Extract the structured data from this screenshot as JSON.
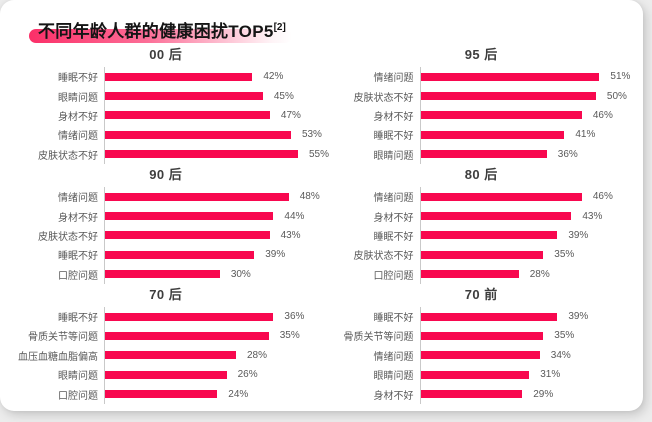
{
  "page": {
    "title": "不同年龄人群的健康困扰TOP5",
    "title_superscript": "[2]",
    "accent_color": "#f8084f",
    "title_underline_from": "#fb2f68",
    "title_underline_mid": "#fc6e97",
    "title_underline_to": "#fef3f6",
    "label_color": "#595959",
    "axis_color": "#c9c9c9"
  },
  "chart_data": [
    {
      "type": "bar",
      "orientation": "horizontal",
      "title": "00 后",
      "unit": "%",
      "categories": [
        "睡眠不好",
        "眼睛问题",
        "身材不好",
        "情绪问题",
        "皮肤状态不好"
      ],
      "values": [
        42,
        45,
        47,
        53,
        55
      ],
      "xlim": [
        0,
        60
      ],
      "grid": false,
      "legend": false
    },
    {
      "type": "bar",
      "orientation": "horizontal",
      "title": "95 后",
      "unit": "%",
      "categories": [
        "情绪问题",
        "皮肤状态不好",
        "身材不好",
        "睡眠不好",
        "眼睛问题"
      ],
      "values": [
        51,
        50,
        46,
        41,
        36
      ],
      "xlim": [
        0,
        60
      ],
      "grid": false,
      "legend": false
    },
    {
      "type": "bar",
      "orientation": "horizontal",
      "title": "90 后",
      "unit": "%",
      "categories": [
        "情绪问题",
        "身材不好",
        "皮肤状态不好",
        "睡眠不好",
        "口腔问题"
      ],
      "values": [
        48,
        44,
        43,
        39,
        30
      ],
      "xlim": [
        0,
        55
      ],
      "grid": false,
      "legend": false
    },
    {
      "type": "bar",
      "orientation": "horizontal",
      "title": "80 后",
      "unit": "%",
      "categories": [
        "情绪问题",
        "身材不好",
        "睡眠不好",
        "皮肤状态不好",
        "口腔问题"
      ],
      "values": [
        46,
        43,
        39,
        35,
        28
      ],
      "xlim": [
        0,
        60
      ],
      "grid": false,
      "legend": false
    },
    {
      "type": "bar",
      "orientation": "horizontal",
      "title": "70 后",
      "unit": "%",
      "categories": [
        "睡眠不好",
        "骨质关节等问题",
        "血压血糖血脂偏高",
        "眼睛问题",
        "口腔问题"
      ],
      "values": [
        36,
        35,
        28,
        26,
        24
      ],
      "xlim": [
        0,
        45
      ],
      "grid": false,
      "legend": false
    },
    {
      "type": "bar",
      "orientation": "horizontal",
      "title": "70 前",
      "unit": "%",
      "categories": [
        "睡眠不好",
        "骨质关节等问题",
        "情绪问题",
        "眼睛问题",
        "身材不好"
      ],
      "values": [
        39,
        35,
        34,
        31,
        29
      ],
      "xlim": [
        0,
        60
      ],
      "grid": false,
      "legend": false
    }
  ]
}
